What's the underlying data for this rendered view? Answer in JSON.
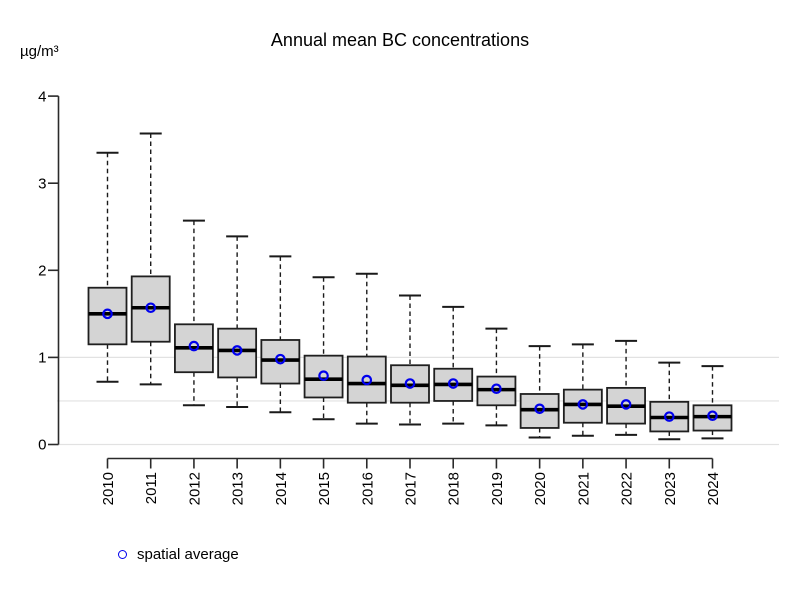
{
  "chart_data": {
    "type": "boxplot",
    "title": "Annual mean BC concentrations",
    "ylabel": "µg/m³",
    "xlabel": "",
    "ylim": [
      0,
      4
    ],
    "y_ticks": [
      0,
      1,
      2,
      3,
      4
    ],
    "gridlines_y": [
      0,
      0.5,
      1
    ],
    "grid": "light horizontal lines at y = 0, 0.5 and 1",
    "legend_label": "spatial average",
    "legend_marker": "blue open circle",
    "legend_position": "bottom-left",
    "categories": [
      "2010",
      "2011",
      "2012",
      "2013",
      "2014",
      "2015",
      "2016",
      "2017",
      "2018",
      "2019",
      "2020",
      "2021",
      "2022",
      "2023",
      "2024"
    ],
    "series": [
      {
        "year": "2010",
        "min": 0.72,
        "q1": 1.15,
        "median": 1.5,
        "q3": 1.8,
        "max": 3.35,
        "mean": 1.5
      },
      {
        "year": "2011",
        "min": 0.69,
        "q1": 1.18,
        "median": 1.57,
        "q3": 1.93,
        "max": 3.57,
        "mean": 1.57
      },
      {
        "year": "2012",
        "min": 0.45,
        "q1": 0.83,
        "median": 1.11,
        "q3": 1.38,
        "max": 2.57,
        "mean": 1.13
      },
      {
        "year": "2013",
        "min": 0.43,
        "q1": 0.77,
        "median": 1.08,
        "q3": 1.33,
        "max": 2.39,
        "mean": 1.08
      },
      {
        "year": "2014",
        "min": 0.37,
        "q1": 0.7,
        "median": 0.97,
        "q3": 1.2,
        "max": 2.16,
        "mean": 0.98
      },
      {
        "year": "2015",
        "min": 0.29,
        "q1": 0.54,
        "median": 0.75,
        "q3": 1.02,
        "max": 1.92,
        "mean": 0.79
      },
      {
        "year": "2016",
        "min": 0.24,
        "q1": 0.48,
        "median": 0.7,
        "q3": 1.01,
        "max": 1.96,
        "mean": 0.74
      },
      {
        "year": "2017",
        "min": 0.23,
        "q1": 0.48,
        "median": 0.68,
        "q3": 0.91,
        "max": 1.71,
        "mean": 0.7
      },
      {
        "year": "2018",
        "min": 0.24,
        "q1": 0.5,
        "median": 0.69,
        "q3": 0.87,
        "max": 1.58,
        "mean": 0.7
      },
      {
        "year": "2019",
        "min": 0.22,
        "q1": 0.45,
        "median": 0.63,
        "q3": 0.78,
        "max": 1.33,
        "mean": 0.64
      },
      {
        "year": "2020",
        "min": 0.08,
        "q1": 0.19,
        "median": 0.4,
        "q3": 0.58,
        "max": 1.13,
        "mean": 0.41
      },
      {
        "year": "2021",
        "min": 0.1,
        "q1": 0.25,
        "median": 0.46,
        "q3": 0.63,
        "max": 1.15,
        "mean": 0.46
      },
      {
        "year": "2022",
        "min": 0.11,
        "q1": 0.24,
        "median": 0.44,
        "q3": 0.65,
        "max": 1.19,
        "mean": 0.46
      },
      {
        "year": "2023",
        "min": 0.06,
        "q1": 0.15,
        "median": 0.31,
        "q3": 0.49,
        "max": 0.94,
        "mean": 0.32
      },
      {
        "year": "2024",
        "min": 0.07,
        "q1": 0.16,
        "median": 0.32,
        "q3": 0.45,
        "max": 0.9,
        "mean": 0.33
      }
    ]
  },
  "colors": {
    "background": "#ffffff",
    "box_fill": "#d4d4d4",
    "box_border": "#1f1f1f",
    "median": "#000000",
    "whisker": "#1a1a1a",
    "mean_marker": "#0000ee",
    "gridline": "#e2e2e2",
    "axis": "#2a2a2a",
    "text": "#000000"
  }
}
